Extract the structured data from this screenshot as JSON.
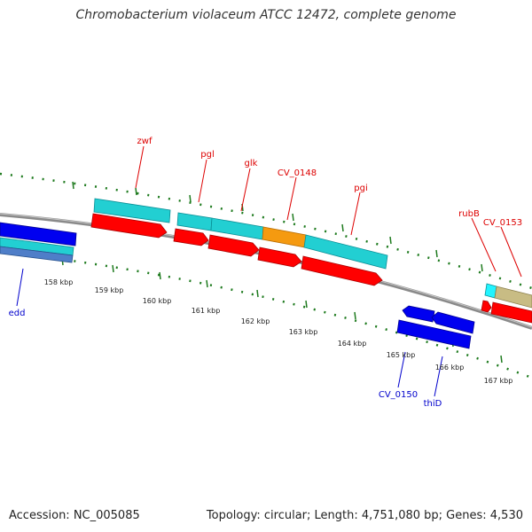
{
  "title": "Chromobacterium violaceum ATCC 12472, complete genome",
  "footer": {
    "accession": "Accession: NC_005085",
    "summary": "Topology: circular; Length: 4,751,080 bp; Genes: 4,530"
  },
  "colors": {
    "forward_cds": "#22cfd2",
    "forward_gene": "#ff0000",
    "reverse_cds": "#0000f0",
    "highlight_cds": "#f59a10",
    "pale_cds": "#c8bc84",
    "backbone": "#8a8a8a",
    "ticks": "#1d7a1d",
    "forward_label": "#dd0000",
    "reverse_label": "#0000cc"
  },
  "kbp_labels": [
    "158 kbp",
    "159 kbp",
    "160 kbp",
    "161 kbp",
    "162 kbp",
    "163 kbp",
    "164 kbp",
    "165 kbp",
    "166 kbp",
    "167 kbp"
  ],
  "forward_labels": [
    "zwf",
    "pgl",
    "glk",
    "CV_0148",
    "pgi",
    "rubB",
    "CV_0153"
  ],
  "reverse_labels": [
    "edd",
    "CV_0150",
    "thiD"
  ]
}
